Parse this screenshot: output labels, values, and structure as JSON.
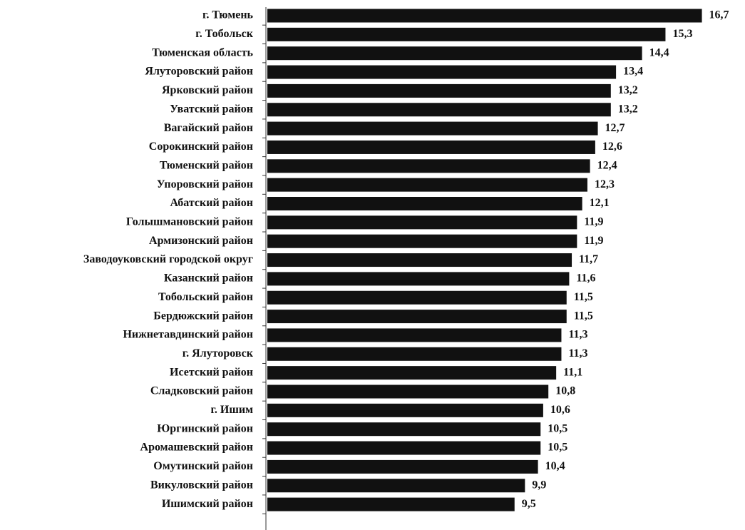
{
  "chart_data": {
    "type": "bar",
    "orientation": "horizontal",
    "color": "#111111",
    "categories": [
      "г. Тюмень",
      "г. Тобольск",
      "Тюменская область",
      "Ялуторовский район",
      "Ярковский район",
      "Уватский район",
      "Вагайский район",
      "Сорокинский район",
      "Тюменский район",
      "Упоровский район",
      "Абатский район",
      "Голышмановский район",
      "Армизонский район",
      "Заводоуковский городской округ",
      "Казанский район",
      "Тобольский район",
      "Бердюжский район",
      "Нижнетавдинский район",
      "г. Ялуторовск",
      "Исетский район",
      "Сладковский район",
      "г. Ишим",
      "Юргинский район",
      "Аромашевский район",
      "Омутинский район",
      "Викуловский район",
      "Ишимский район"
    ],
    "values": [
      16.7,
      15.3,
      14.4,
      13.4,
      13.2,
      13.2,
      12.7,
      12.6,
      12.4,
      12.3,
      12.1,
      11.9,
      11.9,
      11.7,
      11.6,
      11.5,
      11.5,
      11.3,
      11.3,
      11.1,
      10.8,
      10.6,
      10.5,
      10.5,
      10.4,
      9.9,
      9.5
    ],
    "value_labels": [
      "16,7",
      "15,3",
      "14,4",
      "13,4",
      "13,2",
      "13,2",
      "12,7",
      "12,6",
      "12,4",
      "12,3",
      "12,1",
      "11,9",
      "11,9",
      "11,7",
      "11,6",
      "11,5",
      "11,5",
      "11,3",
      "11,3",
      "11,1",
      "10,8",
      "10,6",
      "10,5",
      "10,5",
      "10,4",
      "9,9",
      "9,5"
    ]
  }
}
